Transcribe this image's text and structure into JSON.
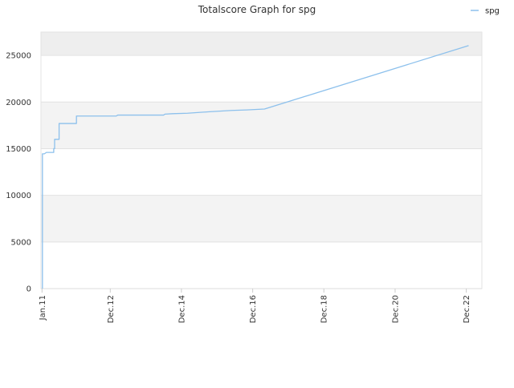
{
  "chart_data": {
    "type": "line",
    "title": "Totalscore Graph for spg",
    "xlabel": "",
    "ylabel": "",
    "ylim": [
      0,
      27500
    ],
    "xlim": [
      "2010-12-21",
      "2023-05-10"
    ],
    "yticks": [
      0,
      5000,
      10000,
      15000,
      20000,
      25000
    ],
    "xticks": [
      {
        "date": "2011-01-01",
        "label": "Jan.11"
      },
      {
        "date": "2012-12-01",
        "label": "Dec.12"
      },
      {
        "date": "2014-12-01",
        "label": "Dec.14"
      },
      {
        "date": "2016-12-01",
        "label": "Dec.16"
      },
      {
        "date": "2018-12-01",
        "label": "Dec.18"
      },
      {
        "date": "2020-12-01",
        "label": "Dec.20"
      },
      {
        "date": "2022-12-01",
        "label": "Dec.22"
      }
    ],
    "grid": true,
    "legend_position": "top-right",
    "series": [
      {
        "name": "spg",
        "color": "#8cc0ec",
        "points": [
          [
            "2011-01-05",
            0
          ],
          [
            "2011-01-05",
            14450
          ],
          [
            "2011-01-25",
            14450
          ],
          [
            "2011-02-15",
            14600
          ],
          [
            "2011-05-01",
            14600
          ],
          [
            "2011-05-01",
            15000
          ],
          [
            "2011-05-10",
            15000
          ],
          [
            "2011-05-10",
            16000
          ],
          [
            "2011-06-25",
            16000
          ],
          [
            "2011-06-25",
            17700
          ],
          [
            "2011-12-20",
            17700
          ],
          [
            "2011-12-20",
            18500
          ],
          [
            "2013-02-01",
            18500
          ],
          [
            "2013-02-15",
            18600
          ],
          [
            "2014-06-01",
            18600
          ],
          [
            "2014-06-15",
            18700
          ],
          [
            "2014-09-01",
            18750
          ],
          [
            "2015-02-01",
            18800
          ],
          [
            "2015-09-01",
            18950
          ],
          [
            "2016-05-01",
            19100
          ],
          [
            "2016-10-01",
            19150
          ],
          [
            "2017-04-01",
            19250
          ],
          [
            "2022-12-25",
            26050
          ]
        ]
      }
    ]
  }
}
